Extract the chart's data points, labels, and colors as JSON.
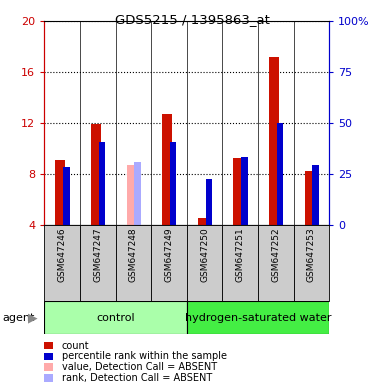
{
  "title": "GDS5215 / 1395863_at",
  "samples": [
    "GSM647246",
    "GSM647247",
    "GSM647248",
    "GSM647249",
    "GSM647250",
    "GSM647251",
    "GSM647252",
    "GSM647253"
  ],
  "red_values": [
    9.1,
    11.9,
    null,
    12.7,
    4.5,
    9.2,
    17.2,
    8.2
  ],
  "blue_values": [
    8.5,
    10.5,
    null,
    10.5,
    7.6,
    9.3,
    12.0,
    8.7
  ],
  "pink_values": [
    null,
    null,
    8.7,
    null,
    null,
    null,
    null,
    null
  ],
  "lavender_values": [
    null,
    null,
    8.9,
    null,
    null,
    null,
    null,
    null
  ],
  "absent_flags": [
    false,
    false,
    true,
    false,
    false,
    false,
    false,
    false
  ],
  "ylim_left": [
    4,
    20
  ],
  "ylim_right": [
    0,
    100
  ],
  "yticks_left": [
    4,
    8,
    12,
    16,
    20
  ],
  "yticks_right": [
    0,
    25,
    50,
    75,
    100
  ],
  "yticklabels_right": [
    "0",
    "25",
    "50",
    "75",
    "100%"
  ],
  "left_axis_color": "#cc0000",
  "right_axis_color": "#0000cc",
  "red_color": "#cc1100",
  "blue_color": "#0000cc",
  "pink_color": "#ffaaaa",
  "lavender_color": "#aaaaff",
  "tick_label_bg": "#cccccc",
  "control_color": "#aaffaa",
  "h2_color": "#44ee44",
  "legend_items": [
    {
      "color": "#cc1100",
      "label": "count"
    },
    {
      "color": "#0000cc",
      "label": "percentile rank within the sample"
    },
    {
      "color": "#ffaaaa",
      "label": "value, Detection Call = ABSENT"
    },
    {
      "color": "#aaaaff",
      "label": "rank, Detection Call = ABSENT"
    }
  ]
}
